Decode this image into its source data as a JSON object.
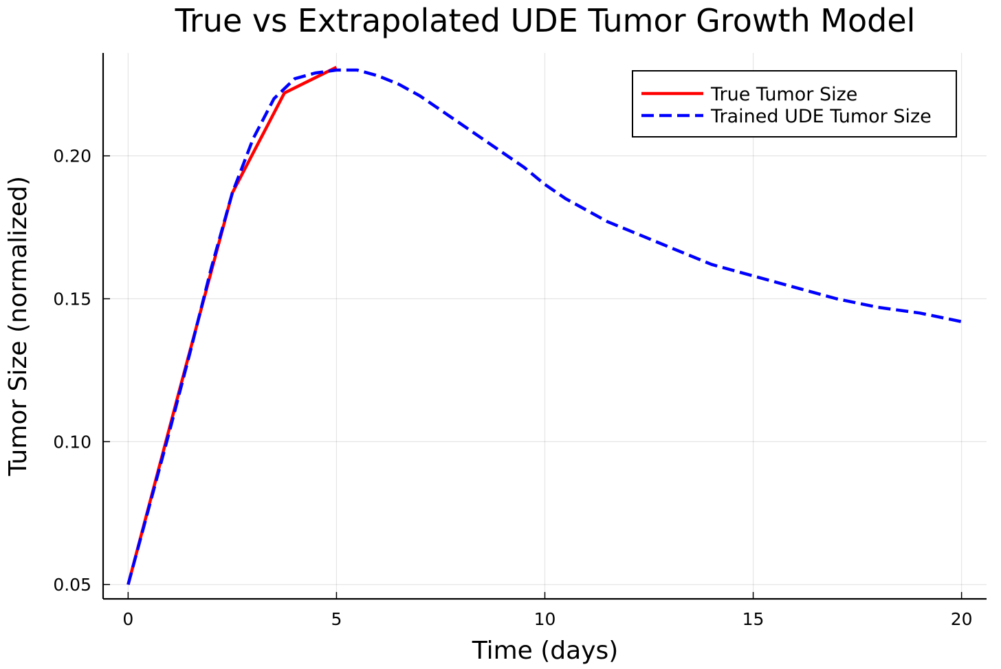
{
  "chart_data": {
    "type": "line",
    "title": "True vs Extrapolated UDE Tumor Growth Model",
    "xlabel": "Time (days)",
    "ylabel": "Tumor Size (normalized)",
    "xlim": [
      -0.6,
      20.6
    ],
    "ylim": [
      0.045,
      0.236
    ],
    "xticks": [
      0,
      5,
      10,
      15,
      20
    ],
    "xtick_labels": [
      "0",
      "5",
      "10",
      "15",
      "20"
    ],
    "yticks": [
      0.05,
      0.1,
      0.15,
      0.2
    ],
    "ytick_labels": [
      "0.05",
      "0.10",
      "0.15",
      "0.20"
    ],
    "grid": true,
    "legend_position": "top-right",
    "series": [
      {
        "name": "True Tumor Size",
        "color": "#ff0000",
        "style": "solid",
        "x": [
          0,
          1.25,
          2.5,
          3.75,
          5.0
        ],
        "y": [
          0.05,
          0.119,
          0.187,
          0.222,
          0.231
        ]
      },
      {
        "name": "Trained UDE Tumor Size",
        "color": "#0000ff",
        "style": "dashed",
        "x": [
          0,
          0.5,
          1.0,
          1.5,
          2.0,
          2.5,
          3.0,
          3.5,
          4.0,
          4.5,
          5.0,
          5.5,
          6.0,
          6.5,
          7.0,
          7.5,
          8.0,
          8.5,
          9.0,
          9.5,
          10.0,
          10.5,
          11.0,
          11.5,
          12.0,
          13.0,
          14.0,
          15.0,
          16.0,
          17.0,
          18.0,
          19.0,
          20.0
        ],
        "y": [
          0.05,
          0.077,
          0.104,
          0.132,
          0.161,
          0.187,
          0.206,
          0.22,
          0.227,
          0.229,
          0.23,
          0.23,
          0.228,
          0.225,
          0.221,
          0.216,
          0.211,
          0.206,
          0.201,
          0.196,
          0.19,
          0.185,
          0.181,
          0.177,
          0.174,
          0.168,
          0.162,
          0.158,
          0.154,
          0.15,
          0.147,
          0.145,
          0.142
        ]
      }
    ]
  }
}
